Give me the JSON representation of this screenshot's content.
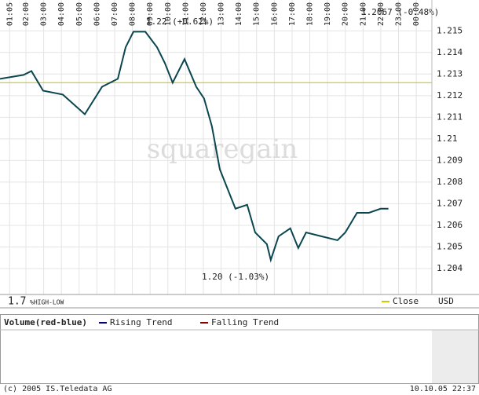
{
  "chart_data": {
    "type": "line",
    "x": [
      0.54,
      1.87,
      2.31,
      2.97,
      4.08,
      5.32,
      6.29,
      7.18,
      7.62,
      8.06,
      8.73,
      9.39,
      9.83,
      10.27,
      10.94,
      11.6,
      12.04,
      12.48,
      12.93,
      13.37,
      13.81,
      14.47,
      14.92,
      15.58,
      15.8,
      16.24,
      16.9,
      17.35,
      17.79,
      18.67,
      19.56,
      20.0,
      20.66,
      21.33,
      21.99,
      22.43
    ],
    "values": [
      1.21278,
      1.21296,
      1.21314,
      1.21223,
      1.21205,
      1.21114,
      1.21241,
      1.21278,
      1.21424,
      1.21496,
      1.21496,
      1.21424,
      1.21351,
      1.2126,
      1.21369,
      1.21241,
      1.21187,
      1.21059,
      1.20859,
      1.20768,
      1.20677,
      1.20695,
      1.20567,
      1.20513,
      1.2044,
      1.20549,
      1.20586,
      1.20495,
      1.20567,
      1.20549,
      1.20531,
      1.20567,
      1.20658,
      1.20658,
      1.20677,
      1.20677
    ],
    "color": "#0b4650",
    "xlim": [
      0.54,
      24.88
    ],
    "xticks": [
      {
        "value": 1.083,
        "label": "01:05"
      },
      {
        "value": 2,
        "label": "02:00"
      },
      {
        "value": 3,
        "label": "03:00"
      },
      {
        "value": 4,
        "label": "04:00"
      },
      {
        "value": 5,
        "label": "05:00"
      },
      {
        "value": 6,
        "label": "06:00"
      },
      {
        "value": 7,
        "label": "07:00"
      },
      {
        "value": 8,
        "label": "08:00"
      },
      {
        "value": 9,
        "label": "09:00"
      },
      {
        "value": 10,
        "label": "10:00"
      },
      {
        "value": 11,
        "label": "11:00"
      },
      {
        "value": 12,
        "label": "12:00"
      },
      {
        "value": 13,
        "label": "13:00"
      },
      {
        "value": 14,
        "label": "14:00"
      },
      {
        "value": 15,
        "label": "15:00"
      },
      {
        "value": 16,
        "label": "16:00"
      },
      {
        "value": 17,
        "label": "17:00"
      },
      {
        "value": 18,
        "label": "18:00"
      },
      {
        "value": 19,
        "label": "19:00"
      },
      {
        "value": 20,
        "label": "20:00"
      },
      {
        "value": 21,
        "label": "21:00"
      },
      {
        "value": 22,
        "label": "22:00"
      },
      {
        "value": 23,
        "label": "23:00"
      },
      {
        "value": 24,
        "label": "00:00"
      }
    ],
    "ylim": [
      1.2028,
      1.2157
    ],
    "yticks": [
      1.204,
      1.205,
      1.206,
      1.207,
      1.208,
      1.209,
      1.21,
      1.211,
      1.212,
      1.213,
      1.214,
      1.215
    ],
    "grid": true,
    "reference_line": {
      "name": "Close",
      "value": 1.2126,
      "color": "#cccc00"
    },
    "currency": "USD",
    "annotations": [
      "1.22 (+0.62%)",
      "1.20 (-1.03%)",
      "1.2067 (-0.48%)"
    ],
    "watermark": "squaregain",
    "indicator_value": "1.7",
    "indicator_label": "%HIGH-LOW",
    "volume_panel": {
      "title": "Volume(red-blue)",
      "legend": [
        {
          "name": "Rising Trend",
          "color": "#000080"
        },
        {
          "name": "Falling Trend",
          "color": "#8b0000"
        }
      ]
    },
    "footer": {
      "copyright": "(c) 2005 IS.Teledata AG",
      "timestamp": "10.10.05 22:37"
    }
  }
}
